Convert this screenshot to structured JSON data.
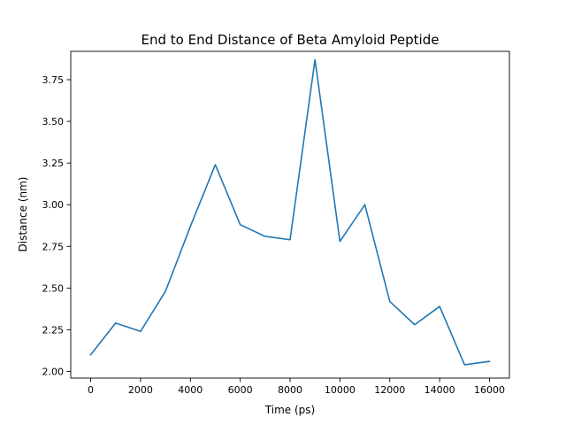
{
  "chart_data": {
    "type": "line",
    "title": "End to End Distance of Beta Amyloid Peptide",
    "xlabel": "Time (ps)",
    "ylabel": "Distance (nm)",
    "xlim": [
      -800,
      16800
    ],
    "ylim": [
      1.96,
      3.92
    ],
    "x_ticks": [
      0,
      2000,
      4000,
      6000,
      8000,
      10000,
      12000,
      14000,
      16000
    ],
    "x_tick_labels": [
      "0",
      "2000",
      "4000",
      "6000",
      "8000",
      "10000",
      "12000",
      "14000",
      "16000"
    ],
    "y_ticks": [
      2.0,
      2.25,
      2.5,
      2.75,
      3.0,
      3.25,
      3.5,
      3.75
    ],
    "y_tick_labels": [
      "2.00",
      "2.25",
      "2.50",
      "2.75",
      "3.00",
      "3.25",
      "3.50",
      "3.75"
    ],
    "grid": false,
    "series": [
      {
        "color": "#1f77b4",
        "x": [
          0,
          1000,
          2000,
          3000,
          4000,
          5000,
          6000,
          7000,
          8000,
          9000,
          10000,
          11000,
          12000,
          13000,
          14000,
          15000,
          16000
        ],
        "values": [
          2.1,
          2.29,
          2.24,
          2.48,
          2.87,
          3.24,
          2.88,
          2.81,
          2.79,
          3.87,
          2.78,
          3.0,
          2.42,
          2.28,
          2.39,
          2.04,
          2.06
        ]
      }
    ]
  }
}
